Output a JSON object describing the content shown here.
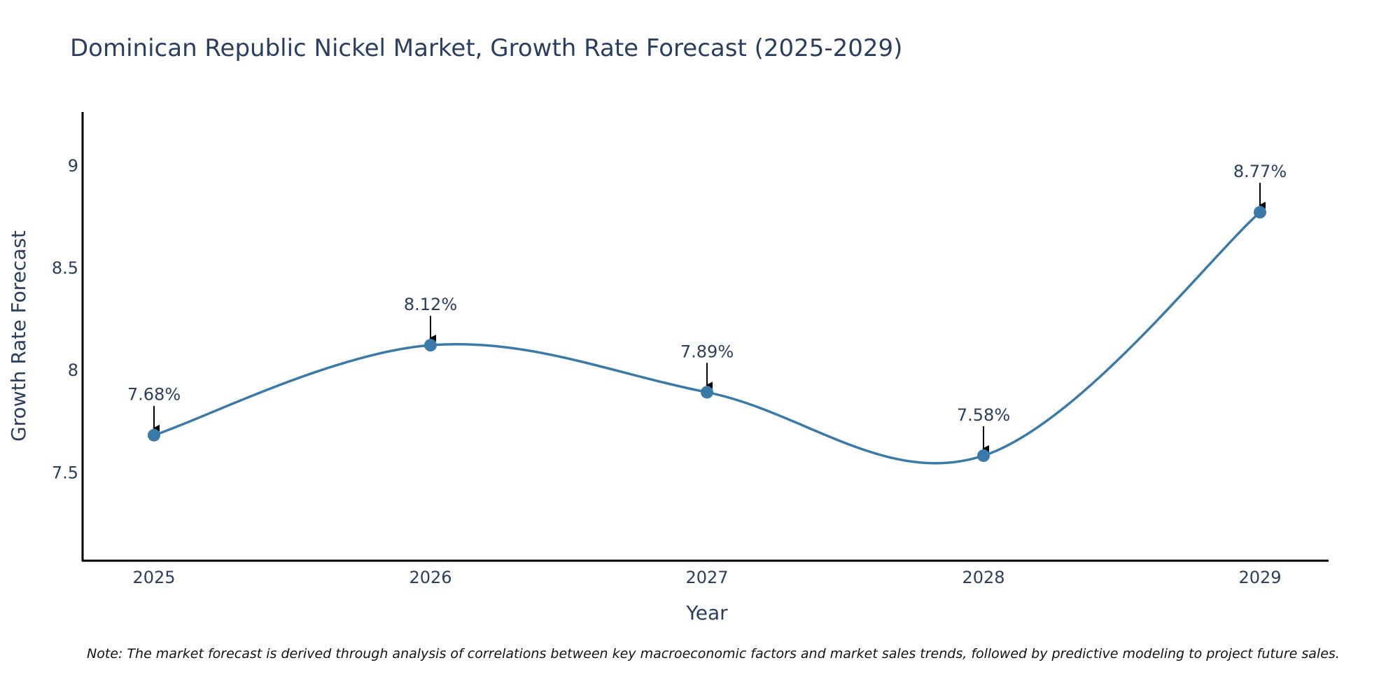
{
  "colors": {
    "line": "#3a7aa8",
    "marker": "#3a7aa8",
    "arrow": "#000000",
    "axis": "#000000",
    "text": "#2a3f5f"
  },
  "chart_data": {
    "type": "line",
    "title": "Dominican Republic Nickel Market, Growth Rate Forecast (2025-2029)",
    "xlabel": "Year",
    "ylabel": "Growth Rate Forecast",
    "x": [
      "2025",
      "2026",
      "2027",
      "2028",
      "2029"
    ],
    "series": [
      {
        "name": "Growth Rate Forecast",
        "values": [
          7.68,
          8.12,
          7.89,
          7.58,
          8.77
        ]
      }
    ],
    "data_labels": [
      "7.68%",
      "8.12%",
      "7.89%",
      "7.58%",
      "8.77%"
    ],
    "ylim": [
      7.07,
      9.26
    ],
    "y_ticks": [
      7.5,
      8,
      8.5,
      9
    ],
    "y_tick_labels": [
      "7.5",
      "8",
      "8.5",
      "9"
    ],
    "grid": false,
    "line_shape": "spline",
    "note": "Note: The market forecast is derived through analysis of correlations between key macroeconomic factors and market sales trends, followed by predictive modeling to project future sales."
  }
}
